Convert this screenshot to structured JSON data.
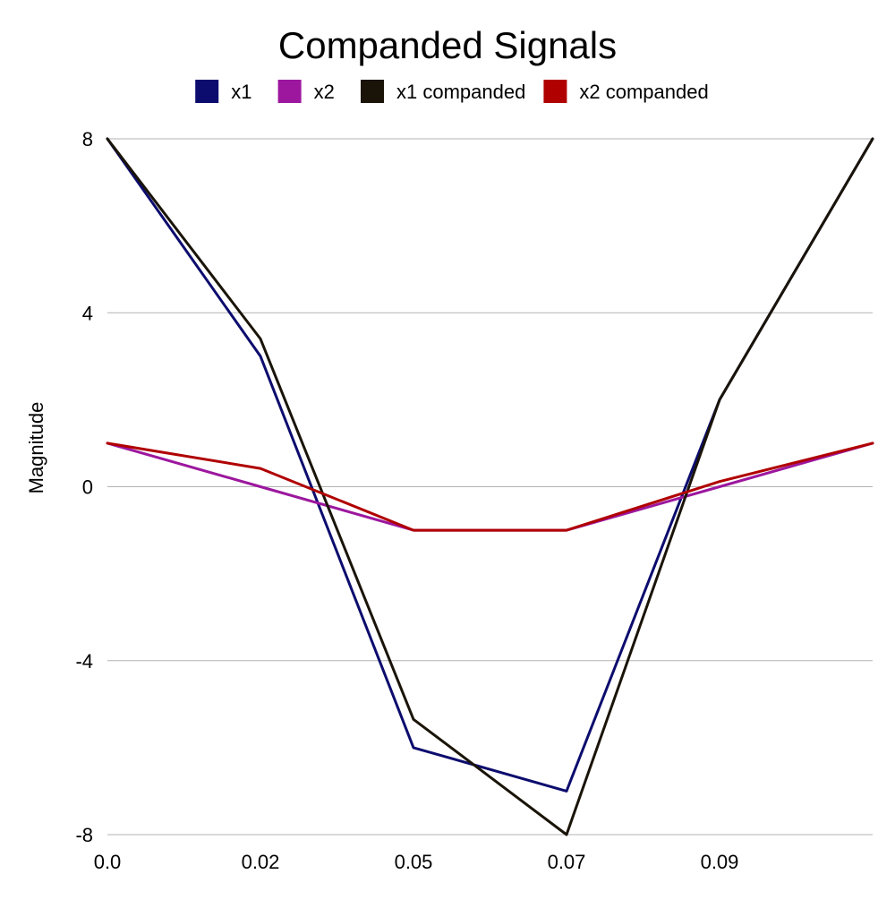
{
  "chart_data": {
    "type": "line",
    "title": "Companded Signals",
    "xlabel": "",
    "ylabel": "Magnitude",
    "x": [
      0.0,
      0.02,
      0.05,
      0.07,
      0.09,
      0.11
    ],
    "x_tick_labels": [
      "0.0",
      "0.02",
      "0.05",
      "0.07",
      "0.09"
    ],
    "y_tick_values": [
      -8,
      -4,
      0,
      4,
      8
    ],
    "y_tick_labels": [
      "-8",
      "-4",
      "0",
      "4",
      "8"
    ],
    "ylim": [
      -8,
      8
    ],
    "grid": true,
    "legend_position": "top",
    "series": [
      {
        "name": "x1",
        "color": "#0c0c6e",
        "values": [
          8,
          3,
          -6,
          -7,
          2,
          8
        ]
      },
      {
        "name": "x2",
        "color": "#9c179e",
        "values": [
          1,
          0,
          -1,
          -1,
          0,
          1
        ]
      },
      {
        "name": "x1 companded",
        "color": "#1a1408",
        "values": [
          8,
          3.4,
          -5.35,
          -8,
          2,
          8
        ]
      },
      {
        "name": "x2 companded",
        "color": "#b00000",
        "values": [
          1,
          0.42,
          -1,
          -1,
          0.12,
          1
        ]
      }
    ]
  }
}
